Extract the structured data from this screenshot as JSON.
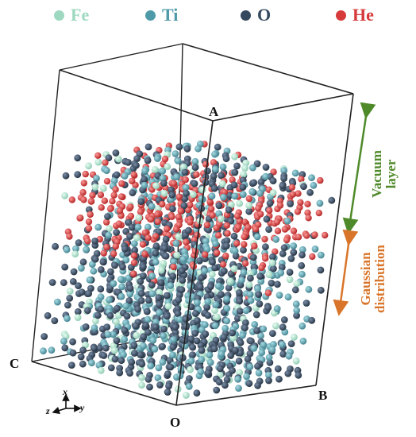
{
  "legend": [
    {
      "symbol": "Fe",
      "color": "#9ed8c0"
    },
    {
      "symbol": "Ti",
      "color": "#4e9aa8"
    },
    {
      "symbol": "O",
      "color": "#34495e"
    },
    {
      "symbol": "He",
      "color": "#d63a3a"
    }
  ],
  "corners": {
    "A": "A",
    "B": "B",
    "C": "C",
    "O": "O"
  },
  "regions": {
    "vacuum": {
      "line1": "Vacuum",
      "line2": "layer",
      "color": "#4f8a2a"
    },
    "gaussian": {
      "line1": "Gaussian",
      "line2": "distribution",
      "color": "#d9752a"
    }
  },
  "axes": {
    "x": "x",
    "y": "y",
    "z": "z"
  },
  "atom_colors": {
    "fe": "#a8dcc6",
    "ti": "#5a9ea8",
    "o": "#3a4a60",
    "he": "#d83a3a"
  }
}
